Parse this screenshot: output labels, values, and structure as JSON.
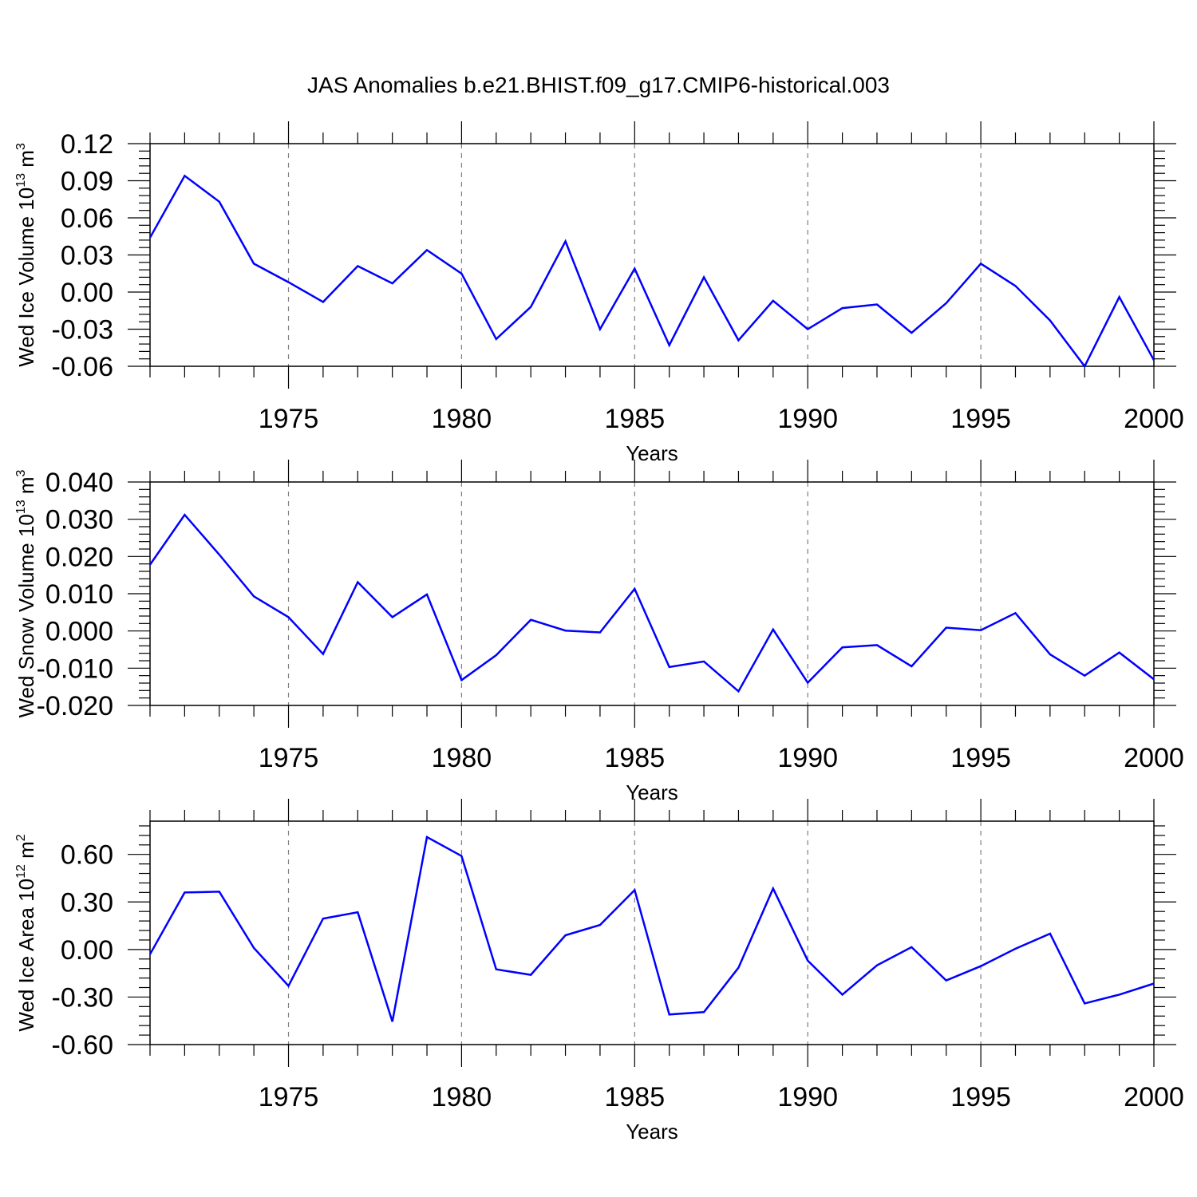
{
  "title": "JAS Anomalies b.e21.BHIST.f09_g17.CMIP6-historical.003",
  "colors": {
    "line": "#0000ff",
    "axis": "#000000",
    "grid": "#808080"
  },
  "chart_data": [
    {
      "type": "line",
      "xlabel": "Years",
      "ylabel": {
        "text": "Wed Ice Volume 10",
        "exp": "13",
        "unit": " m",
        "unit_exp": "3"
      },
      "xlim": [
        1971,
        2000
      ],
      "ylim": [
        -0.06,
        0.12
      ],
      "xticks": [
        "1975",
        "1980",
        "1985",
        "1990",
        "1995",
        "2000"
      ],
      "yticks": [
        "0.12",
        "0.09",
        "0.06",
        "0.03",
        "0.00",
        "-0.03",
        "-0.06"
      ],
      "grid_x": [
        1975,
        1980,
        1985,
        1990,
        1995
      ],
      "x": [
        1971,
        1972,
        1973,
        1974,
        1975,
        1976,
        1977,
        1978,
        1979,
        1980,
        1981,
        1982,
        1983,
        1984,
        1985,
        1986,
        1987,
        1988,
        1989,
        1990,
        1991,
        1992,
        1993,
        1994,
        1995,
        1996,
        1997,
        1998,
        1999,
        2000
      ],
      "y": [
        0.044,
        0.094,
        0.073,
        0.023,
        0.008,
        -0.008,
        0.021,
        0.007,
        0.034,
        0.015,
        -0.038,
        -0.012,
        0.041,
        -0.03,
        0.019,
        -0.043,
        0.012,
        -0.039,
        -0.007,
        -0.03,
        -0.013,
        -0.01,
        -0.033,
        -0.009,
        0.023,
        0.005,
        -0.023,
        -0.06,
        -0.004,
        -0.055
      ]
    },
    {
      "type": "line",
      "xlabel": "Years",
      "ylabel": {
        "text": "Wed Snow Volume 10",
        "exp": "13",
        "unit": " m",
        "unit_exp": "3"
      },
      "xlim": [
        1971,
        2000
      ],
      "ylim": [
        -0.02,
        0.04
      ],
      "xticks": [
        "1975",
        "1980",
        "1985",
        "1990",
        "1995",
        "2000"
      ],
      "yticks": [
        "0.040",
        "0.030",
        "0.020",
        "0.010",
        "0.000",
        "-0.010",
        "-0.020"
      ],
      "grid_x": [
        1975,
        1980,
        1985,
        1990,
        1995
      ],
      "x": [
        1971,
        1972,
        1973,
        1974,
        1975,
        1976,
        1977,
        1978,
        1979,
        1980,
        1981,
        1982,
        1983,
        1984,
        1985,
        1986,
        1987,
        1988,
        1989,
        1990,
        1991,
        1992,
        1993,
        1994,
        1995,
        1996,
        1997,
        1998,
        1999,
        2000
      ],
      "y": [
        0.0178,
        0.0312,
        0.0205,
        0.0093,
        0.0037,
        -0.0062,
        0.0131,
        0.0037,
        0.0098,
        -0.0132,
        -0.0065,
        0.003,
        0.0001,
        -0.0004,
        0.0113,
        -0.0097,
        -0.0082,
        -0.0162,
        0.0004,
        -0.0139,
        -0.0044,
        -0.0038,
        -0.0095,
        0.0009,
        0.0002,
        0.0048,
        -0.0063,
        -0.012,
        -0.0058,
        -0.013
      ]
    },
    {
      "type": "line",
      "xlabel": "Years",
      "ylabel": {
        "text": "Wed Ice Area 10",
        "exp": "12",
        "unit": " m",
        "unit_exp": "2"
      },
      "xlim": [
        1971,
        2000
      ],
      "ylim": [
        -0.6,
        0.81
      ],
      "xticks": [
        "1975",
        "1980",
        "1985",
        "1990",
        "1995",
        "2000"
      ],
      "yticks": [
        "0.60",
        "0.30",
        "0.00",
        "-0.30",
        "-0.60"
      ],
      "grid_x": [
        1975,
        1980,
        1985,
        1990,
        1995
      ],
      "x": [
        1971,
        1972,
        1973,
        1974,
        1975,
        1976,
        1977,
        1978,
        1979,
        1980,
        1981,
        1982,
        1983,
        1984,
        1985,
        1986,
        1987,
        1988,
        1989,
        1990,
        1991,
        1992,
        1993,
        1994,
        1995,
        1996,
        1997,
        1998,
        1999,
        2000
      ],
      "y": [
        -0.03,
        0.36,
        0.365,
        0.01,
        -0.23,
        0.195,
        0.235,
        -0.455,
        0.71,
        0.59,
        -0.125,
        -0.16,
        0.09,
        0.155,
        0.375,
        -0.41,
        -0.395,
        -0.115,
        0.385,
        -0.07,
        -0.285,
        -0.1,
        0.015,
        -0.195,
        -0.105,
        0.005,
        0.1,
        -0.34,
        -0.285,
        -0.215
      ]
    }
  ]
}
